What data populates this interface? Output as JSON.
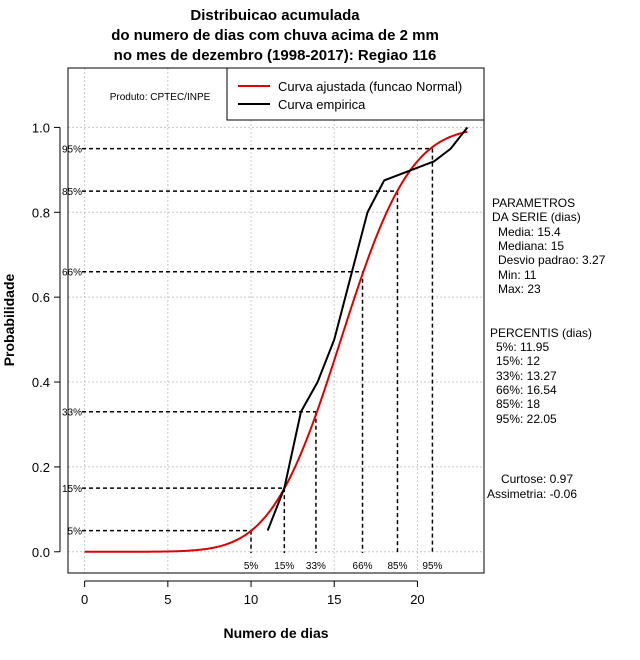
{
  "chart_data": {
    "type": "line",
    "title": [
      "Distribuicao acumulada",
      "do numero de dias com chuva acima de 2 mm",
      "no mes de dezembro (1998-2017): Regiao 116"
    ],
    "xlabel": "Numero de dias",
    "ylabel": "Probabilidade",
    "xlim": [
      -1,
      24
    ],
    "ylim": [
      -0.05,
      1.14
    ],
    "x_ticks": [
      0,
      5,
      10,
      15,
      20
    ],
    "y_ticks": [
      0.0,
      0.2,
      0.4,
      0.6,
      0.8,
      1.0
    ],
    "y_tick_labels": [
      "0.0",
      "0.2",
      "0.4",
      "0.6",
      "0.8",
      "1.0"
    ],
    "grid": true,
    "product_label": "Produto: CPTEC/INPE",
    "legend": {
      "position": "top-right",
      "entries": [
        {
          "label": "Curva ajustada (funcao Normal)",
          "color": "#dd0000"
        },
        {
          "label": "Curva empirica",
          "color": "#000000"
        }
      ]
    },
    "series": [
      {
        "name": "Curva ajustada (funcao Normal)",
        "kind": "normal_cdf",
        "mean": 15.4,
        "sd": 3.27,
        "x_range": [
          0,
          23
        ],
        "color": "#dd0000"
      },
      {
        "name": "Curva empirica",
        "color": "#000000",
        "x": [
          11,
          12,
          13,
          14,
          15,
          16,
          17,
          18,
          19,
          20,
          21,
          22,
          23
        ],
        "y": [
          0.05,
          0.15,
          0.33,
          0.4,
          0.5,
          0.65,
          0.8,
          0.875,
          0.89,
          0.905,
          0.92,
          0.95,
          1.0
        ]
      }
    ],
    "percentiles": [
      {
        "label": "5%",
        "p": 0.05,
        "x": 11.95
      },
      {
        "label": "15%",
        "p": 0.15,
        "x": 12
      },
      {
        "label": "33%",
        "p": 0.33,
        "x": 13.27
      },
      {
        "label": "66%",
        "p": 0.66,
        "x": 16.54
      },
      {
        "label": "85%",
        "p": 0.85,
        "x": 18
      },
      {
        "label": "95%",
        "p": 0.95,
        "x": 22.05
      }
    ],
    "guide_lines": [
      {
        "label": "5%",
        "p": 0.05,
        "x": 10
      },
      {
        "label": "15%",
        "p": 0.15,
        "x": 12
      },
      {
        "label": "33%",
        "p": 0.33,
        "x": 13.9
      },
      {
        "label": "66%",
        "p": 0.66,
        "x": 16.7
      },
      {
        "label": "85%",
        "p": 0.85,
        "x": 18.8
      },
      {
        "label": "95%",
        "p": 0.95,
        "x": 20.9
      }
    ],
    "parameters": {
      "heading": [
        "PARAMETROS",
        "DA SERIE (dias)"
      ],
      "lines": [
        "Media: 15.4",
        "Mediana: 15",
        "Desvio padrao: 3.27",
        "Min: 11",
        "Max: 23"
      ]
    },
    "percentis_block": {
      "heading": "PERCENTIS (dias)",
      "lines": [
        "5%: 11.95",
        "15%: 12",
        "33%: 13.27",
        "66%: 16.54",
        "85%: 18",
        "95%: 22.05"
      ]
    },
    "shape_stats": [
      "Curtose: 0.97",
      "Assimetria: -0.06"
    ]
  }
}
